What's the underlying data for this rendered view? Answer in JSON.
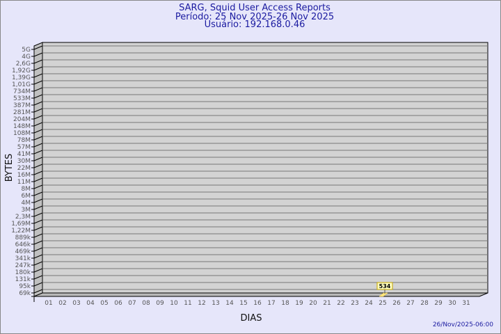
{
  "header": {
    "title": "SARG, Squid User Access Reports",
    "period": "Período: 25 Nov 2025-26 Nov 2025",
    "user": "Usuário: 192.168.0.46"
  },
  "footer": {
    "timestamp": "26/Nov/2025-06:00"
  },
  "colors": {
    "background": "#e6e6fa",
    "plot": "#d3d3d3",
    "bar": "#ffe680",
    "title": "#1a1aa0"
  },
  "chart_data": {
    "type": "bar",
    "xlabel": "DIAS",
    "ylabel": "BYTES",
    "y_scale": "log",
    "grid": true,
    "categories": [
      "01",
      "02",
      "03",
      "04",
      "05",
      "06",
      "07",
      "08",
      "09",
      "10",
      "11",
      "12",
      "13",
      "14",
      "15",
      "16",
      "17",
      "18",
      "19",
      "20",
      "21",
      "22",
      "23",
      "24",
      "25",
      "26",
      "27",
      "28",
      "29",
      "30",
      "31"
    ],
    "y_ticks": [
      "5G",
      "4G",
      "2,6G",
      "1,92G",
      "1,39G",
      "1,01G",
      "734M",
      "533M",
      "387M",
      "281M",
      "204M",
      "148M",
      "108M",
      "78M",
      "57M",
      "41M",
      "30M",
      "22M",
      "16M",
      "11M",
      "8M",
      "6M",
      "4M",
      "3M",
      "2,3M",
      "1,69M",
      "1,22M",
      "889k",
      "646k",
      "469k",
      "341k",
      "247k",
      "180k",
      "131k",
      "95k",
      "69k"
    ],
    "series": [
      {
        "values": [
          null,
          null,
          null,
          null,
          null,
          null,
          null,
          null,
          null,
          null,
          null,
          null,
          null,
          null,
          null,
          null,
          null,
          null,
          null,
          null,
          null,
          null,
          null,
          null,
          534,
          null,
          null,
          null,
          null,
          null,
          null
        ]
      }
    ],
    "data_labels": [
      {
        "category": "25",
        "text": "534"
      }
    ]
  }
}
